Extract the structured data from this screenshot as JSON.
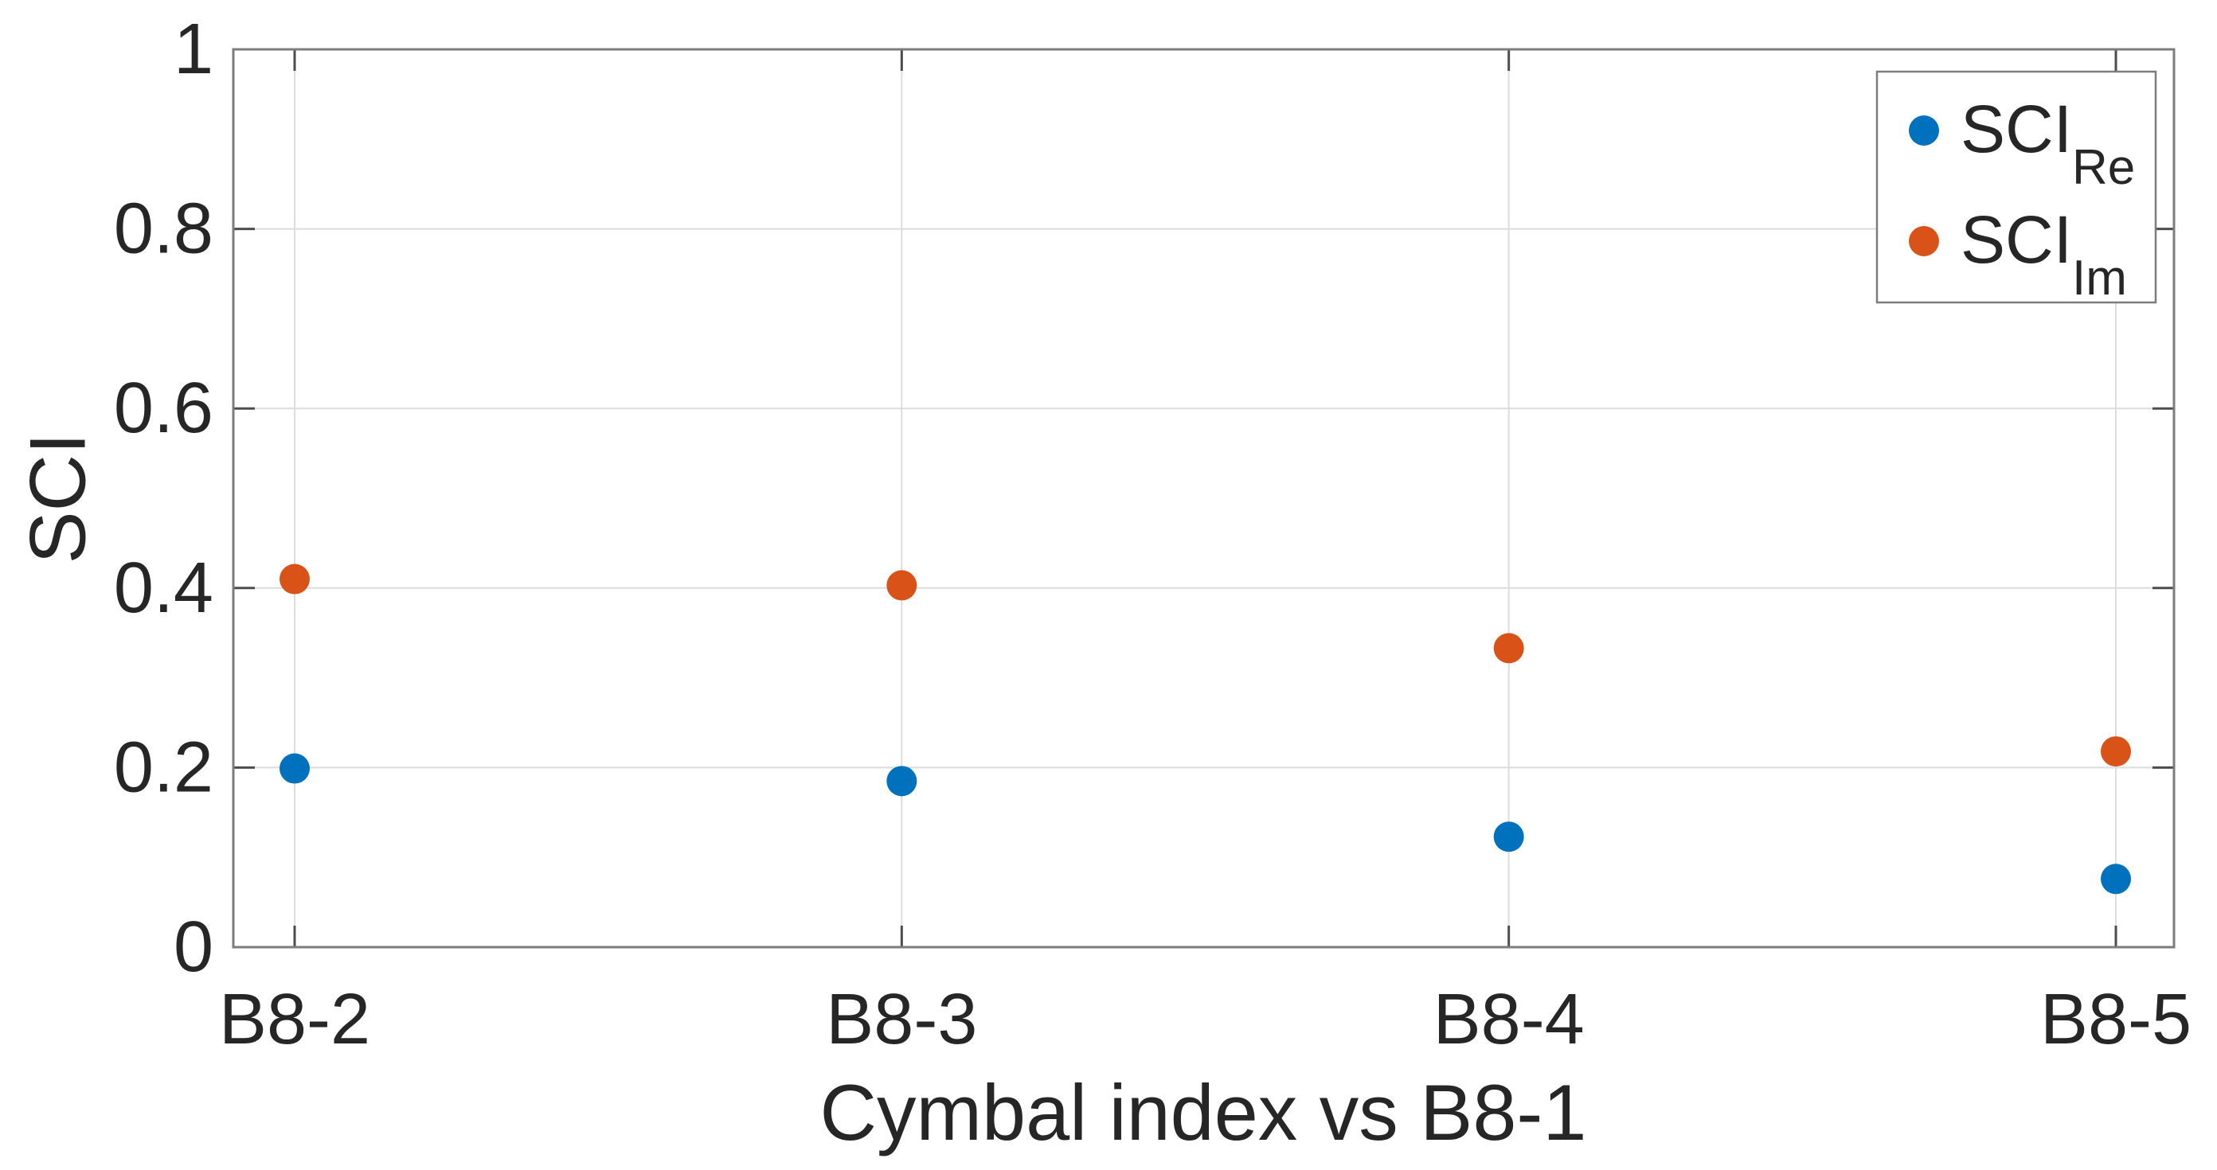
{
  "chart_data": {
    "type": "scatter",
    "title": "",
    "xlabel": "Cymbal index vs B8-1",
    "ylabel": "SCI",
    "categories": [
      "B8-2",
      "B8-3",
      "B8-4",
      "B8-5"
    ],
    "series": [
      {
        "name": "SCI_Re",
        "label_base": "SCI",
        "label_sub": "Re",
        "color": "#0072BD",
        "values": [
          0.199,
          0.185,
          0.123,
          0.076
        ]
      },
      {
        "name": "SCI_Im",
        "label_base": "SCI",
        "label_sub": "Im",
        "color": "#D95319",
        "values": [
          0.41,
          0.403,
          0.333,
          0.218
        ]
      }
    ],
    "ylim": [
      0,
      1
    ],
    "yticks": [
      0,
      0.2,
      0.4,
      0.6,
      0.8,
      1
    ],
    "ytick_labels": [
      "0",
      "0.2",
      "0.4",
      "0.6",
      "0.8",
      "1"
    ],
    "grid": true,
    "marker": "filled-circle",
    "legend_position": "top-right"
  },
  "colors": {
    "background": "#ffffff",
    "plot_border": "#7d7d7d",
    "tick_mark": "#4d4d4d",
    "grid_line": "#dcdcdc",
    "text": "#262626",
    "legend_border": "#7d7d7d",
    "legend_fill": "#ffffff",
    "series_re": "#0072BD",
    "series_im": "#D95319"
  }
}
